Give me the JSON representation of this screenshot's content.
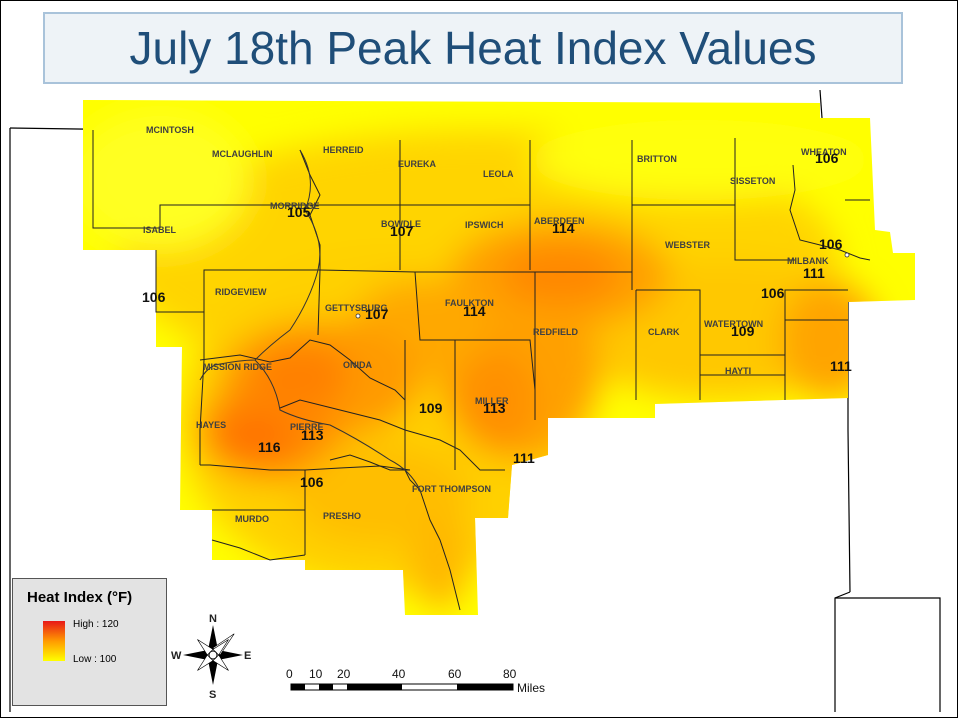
{
  "title": "July 18th Peak Heat Index Values",
  "legend": {
    "title": "Heat Index (°F)",
    "high_label": "High : 120",
    "low_label": "Low : 100",
    "high_color": "#e81818",
    "mid_color": "#ff9a00",
    "low_color": "#ffff00"
  },
  "counties": [
    "MCINTOSH",
    "MCLAUGHLIN",
    "HERREID",
    "EUREKA",
    "LEOLA",
    "BRITTON",
    "WHEATON",
    "SISSETON",
    "MORRIDGE",
    "BOWDLE",
    "IPSWICH",
    "ABERDEEN",
    "WEBSTER",
    "ISABEL",
    "RIDGEVIEW",
    "GETTYSBURG",
    "FAULKTON",
    "REDFIELD",
    "CLARK",
    "WATERTOWN",
    "MILBANK",
    "MISSION RIDGE",
    "ONIDA",
    "MILLER",
    "HAYTI",
    "HAYES",
    "PIERRE",
    "FORT THOMPSON",
    "MURDO",
    "PRESHO"
  ],
  "heat_values": [
    {
      "site": "WHEATON",
      "value": "106"
    },
    {
      "site": "MORRIDGE",
      "value": "105"
    },
    {
      "site": "BOWDLE",
      "value": "107"
    },
    {
      "site": "ABERDEEN",
      "value": "114"
    },
    {
      "site": "MILBANK",
      "value": "106"
    },
    {
      "site": "MILBANK",
      "value": "111"
    },
    {
      "site": "ISABEL",
      "value": "106"
    },
    {
      "site": "WATERTOWN",
      "value": "106"
    },
    {
      "site": "GETTYSBURG",
      "value": "107"
    },
    {
      "site": "FAULKTON",
      "value": "114"
    },
    {
      "site": "WATERTOWN",
      "value": "109"
    },
    {
      "site": "HAYTI",
      "value": "111"
    },
    {
      "site": "MILLER",
      "value": "109"
    },
    {
      "site": "MILLER",
      "value": "113"
    },
    {
      "site": "PIERRE",
      "value": "113"
    },
    {
      "site": "HAYES",
      "value": "116"
    },
    {
      "site": "FORT THOMPSON",
      "value": "111"
    },
    {
      "site": "MURDO",
      "value": "106"
    }
  ],
  "scale_bar": {
    "ticks": [
      "0",
      "10",
      "20",
      "40",
      "60",
      "80"
    ],
    "unit": "Miles"
  },
  "north_arrow": {
    "n": "N",
    "s": "S",
    "e": "E",
    "w": "W"
  }
}
